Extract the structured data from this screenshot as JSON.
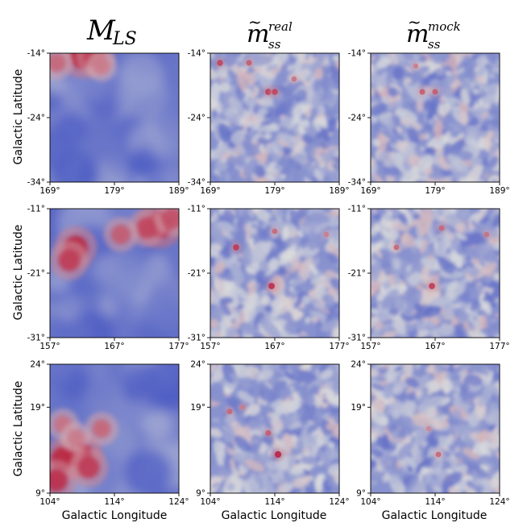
{
  "figure": {
    "column_titles": [
      {
        "symbol": "M",
        "subscript": "LS",
        "superscript": ""
      },
      {
        "symbol": "m",
        "subscript": "ss",
        "superscript": "real",
        "tilde": "~"
      },
      {
        "symbol": "m",
        "subscript": "ss",
        "superscript": "mock",
        "tilde": "~"
      }
    ],
    "y_axis_label": "Galactic Latitude",
    "x_axis_label": "Galactic Longitude",
    "colormap": {
      "low": "#3b4cc0",
      "mid": "#dcdddd",
      "high": "#b40426"
    }
  },
  "chart_data": [
    {
      "type": "heatmap",
      "row": 0,
      "xlim": [
        169,
        189
      ],
      "ylim": [
        -34,
        -14
      ],
      "xticks": [
        169,
        179,
        189
      ],
      "yticks": [
        -14,
        -24,
        -34
      ],
      "xtick_labels": [
        "169°",
        "179°",
        "189°"
      ],
      "ytick_labels": [
        "-14°",
        "-24°",
        "-34°"
      ],
      "hotspots": {
        "M_LS": [
          [
            174,
            -14.5,
            0.9
          ],
          [
            176,
            -14.5,
            0.75
          ],
          [
            170,
            -15.5,
            0.55
          ],
          [
            177,
            -16,
            0.45
          ]
        ],
        "m_ss_real": [
          [
            170.5,
            -15.5,
            0.7
          ],
          [
            175,
            -15.5,
            0.6
          ],
          [
            178,
            -20,
            0.75
          ],
          [
            179,
            -20,
            0.7
          ],
          [
            182,
            -18,
            0.5
          ]
        ],
        "m_ss_mock": [
          [
            177,
            -20,
            0.6
          ],
          [
            179,
            -20,
            0.6
          ],
          [
            176,
            -16,
            0.45
          ]
        ]
      }
    },
    {
      "type": "heatmap",
      "row": 1,
      "xlim": [
        157,
        177
      ],
      "ylim": [
        -31,
        -11
      ],
      "xticks": [
        157,
        167,
        177
      ],
      "yticks": [
        -11,
        -21,
        -31
      ],
      "xtick_labels": [
        "157°",
        "167°",
        "177°"
      ],
      "ytick_labels": [
        "-11°",
        "-21°",
        "-31°"
      ],
      "hotspots": {
        "M_LS": [
          [
            174,
            -13.5,
            1.0
          ],
          [
            172,
            -14,
            0.7
          ],
          [
            176,
            -12.5,
            0.65
          ],
          [
            168,
            -15,
            0.6
          ],
          [
            161,
            -17,
            0.85
          ],
          [
            160,
            -19,
            0.75
          ]
        ],
        "m_ss_real": [
          [
            161,
            -17,
            0.75
          ],
          [
            166.5,
            -23,
            0.8
          ],
          [
            167,
            -14.5,
            0.55
          ],
          [
            175,
            -15,
            0.45
          ]
        ],
        "m_ss_mock": [
          [
            161,
            -17,
            0.55
          ],
          [
            166.5,
            -23,
            0.75
          ],
          [
            168,
            -14,
            0.55
          ],
          [
            175,
            -15,
            0.5
          ]
        ]
      }
    },
    {
      "type": "heatmap",
      "row": 2,
      "xlim": [
        104,
        124
      ],
      "ylim": [
        9,
        24
      ],
      "xticks": [
        104,
        114,
        124
      ],
      "yticks": [
        24,
        19,
        9
      ],
      "xtick_labels": [
        "104°",
        "114°",
        "124°"
      ],
      "ytick_labels": [
        "24°",
        "19°",
        "9°"
      ],
      "hotspots": {
        "M_LS": [
          [
            108.5,
            13.5,
            1.0
          ],
          [
            106,
            13,
            0.85
          ],
          [
            105,
            10.5,
            0.8
          ],
          [
            110,
            12,
            0.75
          ],
          [
            112,
            16.5,
            0.55
          ],
          [
            106,
            17,
            0.5
          ],
          [
            108,
            15.5,
            0.45
          ]
        ],
        "m_ss_real": [
          [
            114.5,
            13.5,
            0.85
          ],
          [
            113,
            16,
            0.6
          ],
          [
            107,
            18.5,
            0.55
          ],
          [
            109,
            19,
            0.45
          ]
        ],
        "m_ss_mock": [
          [
            114.5,
            13.5,
            0.55
          ],
          [
            113,
            16.5,
            0.4
          ]
        ]
      }
    }
  ]
}
